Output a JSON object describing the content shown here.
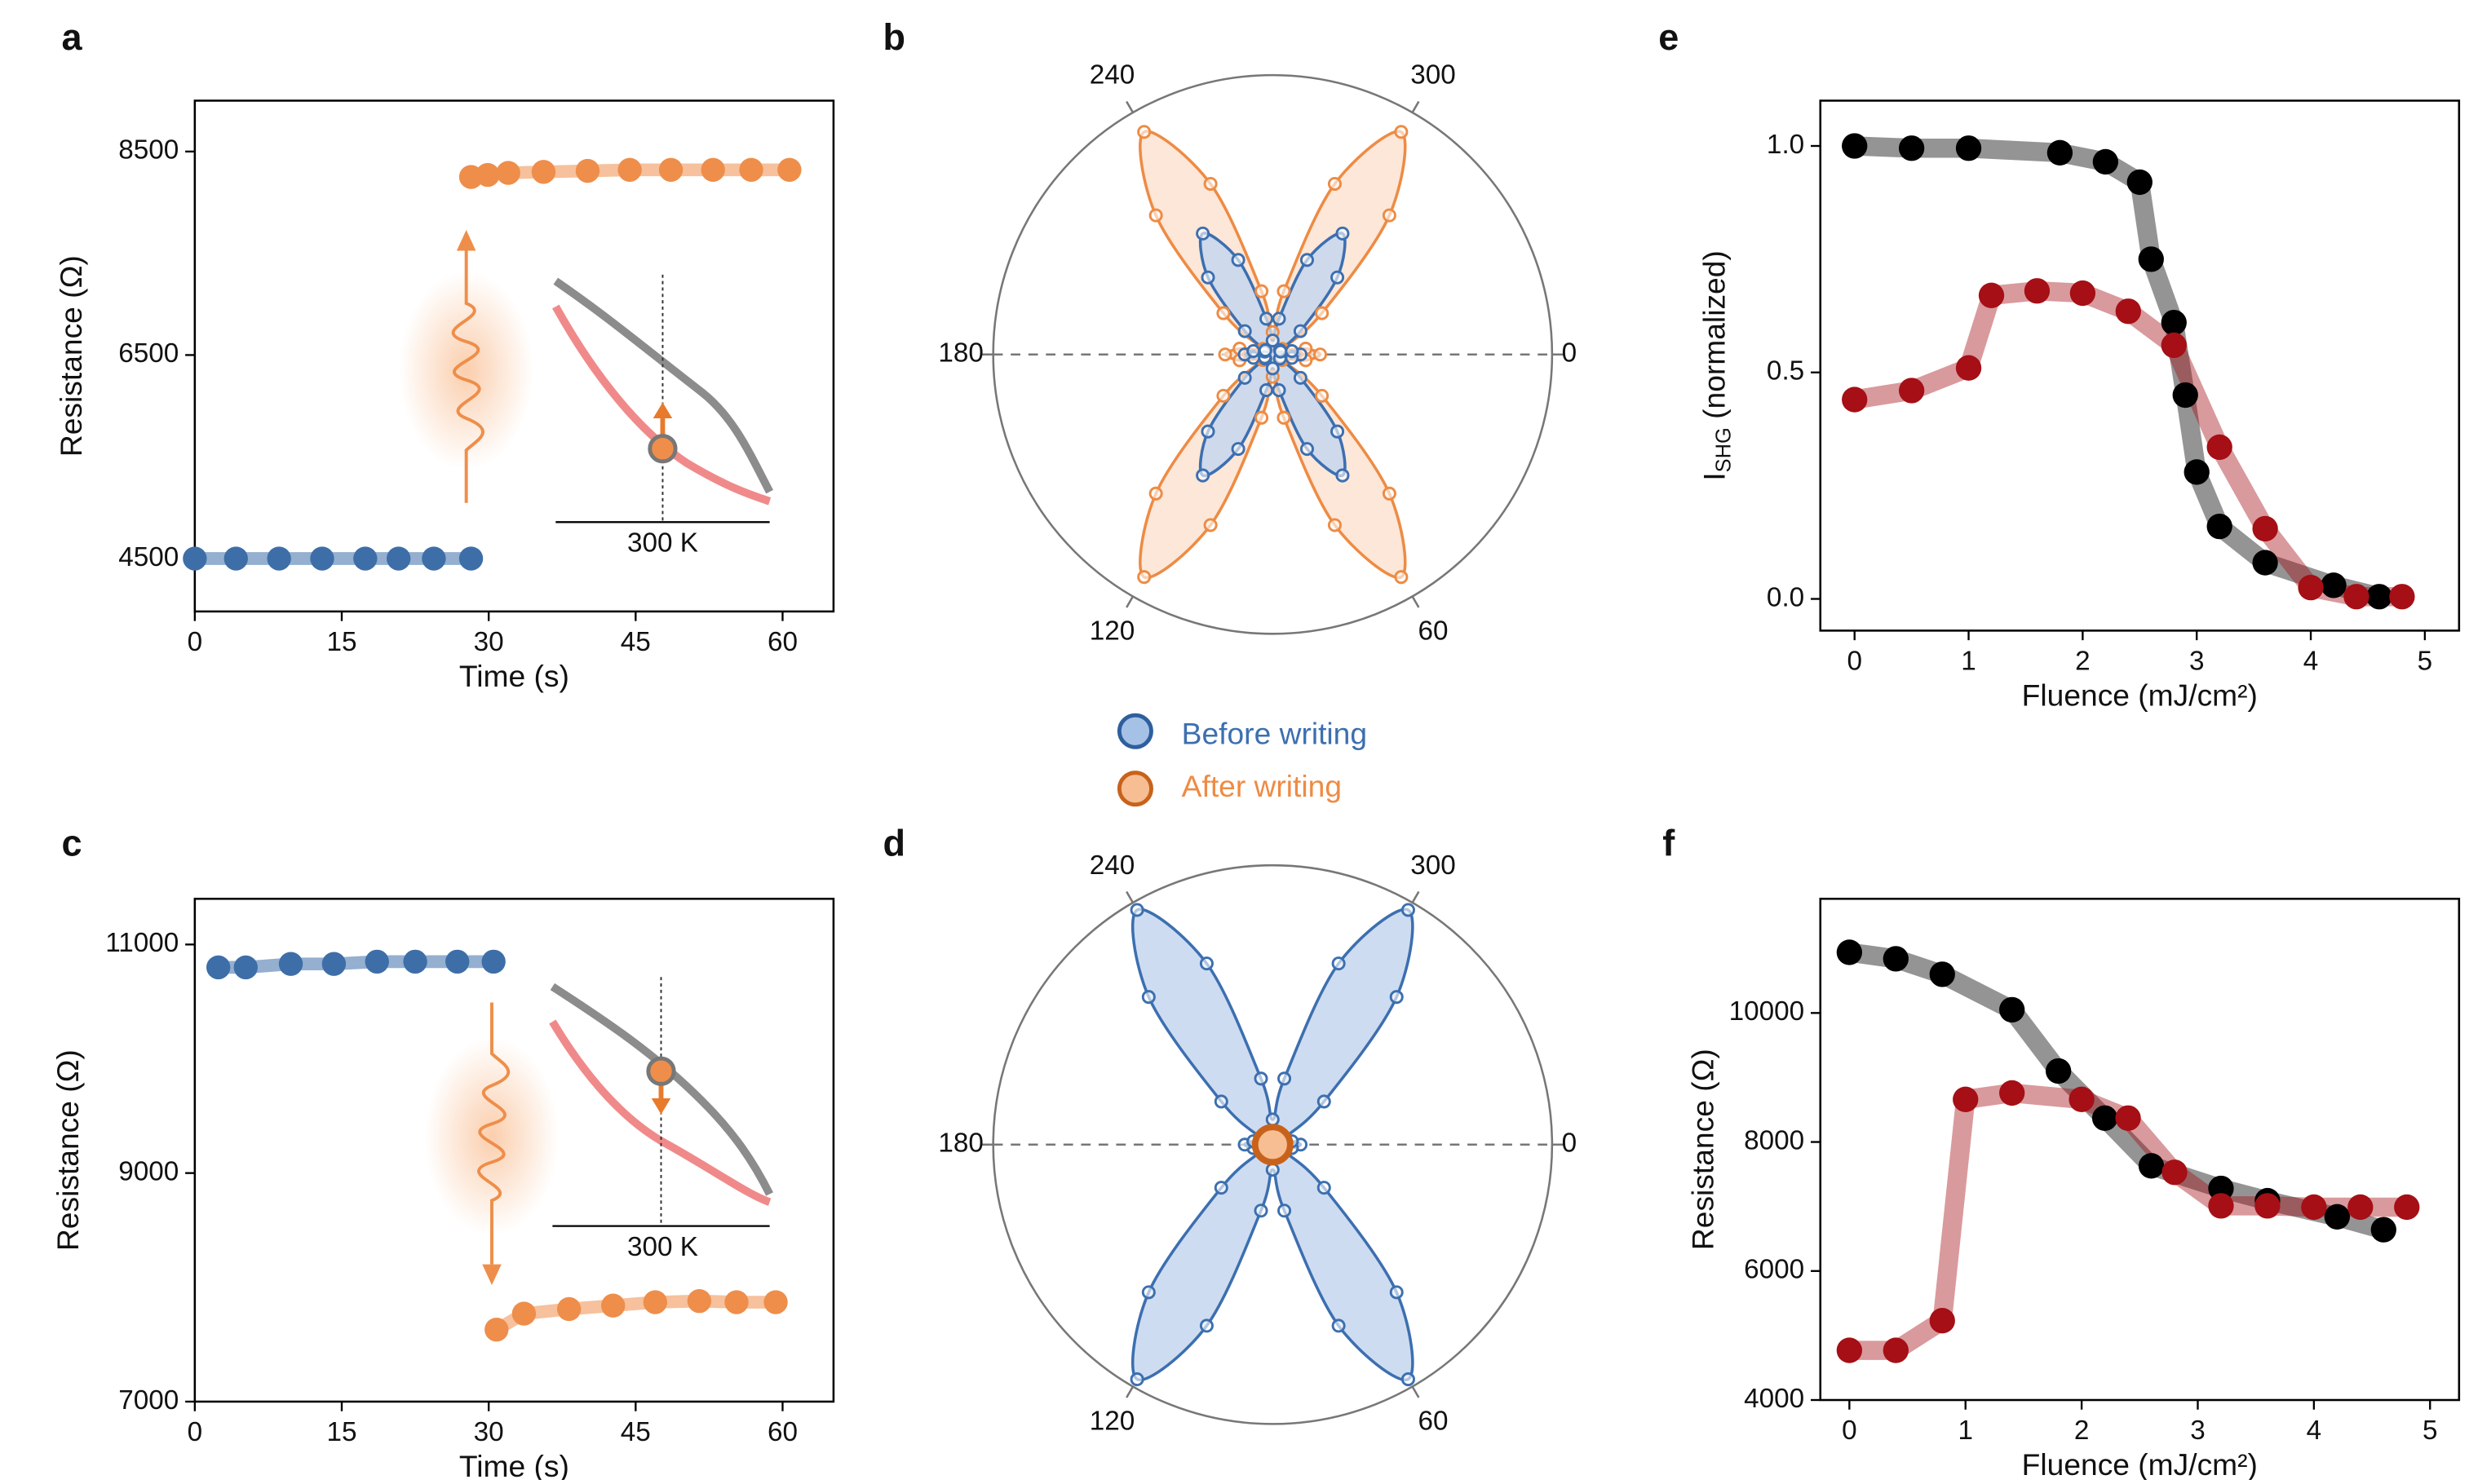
{
  "chart_data": [
    {
      "panel": "a",
      "type": "line",
      "xlabel": "Time (s)",
      "ylabel": "Resistance (Ω)",
      "xlim": [
        0,
        65.2
      ],
      "ylim": [
        3980,
        9000
      ],
      "xticks": [
        0,
        15,
        30,
        45,
        60
      ],
      "yticks": [
        4500,
        6500,
        8500
      ],
      "inset_label": "300 K",
      "series": [
        {
          "color": "#3d6ea8",
          "x": [
            0,
            4.2,
            8.6,
            13,
            17.4,
            20.8,
            24.4,
            28.2
          ],
          "values": [
            4500,
            4500,
            4500,
            4500,
            4500,
            4500,
            4500,
            4500
          ]
        },
        {
          "color": "#ee8e4a",
          "x": [
            28.2,
            29.9,
            32,
            35.6,
            40.1,
            44.4,
            48.6,
            52.9,
            56.8,
            60.7
          ],
          "values": [
            8250,
            8270,
            8290,
            8300,
            8310,
            8320,
            8320,
            8320,
            8320,
            8320
          ]
        }
      ]
    },
    {
      "panel": "b",
      "type": "polar",
      "rlim": [
        0,
        1
      ],
      "thetaticks": [
        0,
        60,
        120,
        180,
        240,
        300
      ],
      "series": [
        {
          "name": "Before writing",
          "color": "#3c6fb0",
          "fill": "#c5d6ee",
          "theta": [
            0,
            10,
            20,
            30,
            40,
            50,
            60,
            70,
            80,
            90,
            100,
            110,
            120,
            130,
            140,
            150,
            160,
            170,
            180,
            190,
            200,
            210,
            220,
            230,
            240,
            250,
            260,
            270,
            280,
            290,
            300,
            310,
            320,
            330,
            340,
            350
          ],
          "values": [
            0.1,
            0.07,
            0.03,
            0.03,
            0.13,
            0.36,
            0.5,
            0.36,
            0.13,
            0.05,
            0.13,
            0.36,
            0.5,
            0.36,
            0.13,
            0.03,
            0.03,
            0.07,
            0.1,
            0.07,
            0.03,
            0.03,
            0.13,
            0.36,
            0.5,
            0.36,
            0.13,
            0.05,
            0.13,
            0.36,
            0.5,
            0.36,
            0.13,
            0.03,
            0.03,
            0.07
          ]
        },
        {
          "name": "After writing",
          "color": "#ee8b43",
          "fill": "#fbe3d2",
          "theta": [
            0,
            10,
            20,
            30,
            40,
            50,
            60,
            70,
            80,
            90,
            100,
            110,
            120,
            130,
            140,
            150,
            160,
            170,
            180,
            190,
            200,
            210,
            220,
            230,
            240,
            250,
            260,
            270,
            280,
            290,
            300,
            310,
            320,
            330,
            340,
            350
          ],
          "values": [
            0.17,
            0.12,
            0.04,
            0.04,
            0.23,
            0.65,
            0.92,
            0.65,
            0.23,
            0.08,
            0.23,
            0.65,
            0.92,
            0.65,
            0.23,
            0.04,
            0.04,
            0.12,
            0.17,
            0.12,
            0.04,
            0.04,
            0.23,
            0.65,
            0.92,
            0.65,
            0.23,
            0.08,
            0.23,
            0.65,
            0.92,
            0.65,
            0.23,
            0.04,
            0.04,
            0.12
          ]
        }
      ]
    },
    {
      "panel": "c",
      "type": "line",
      "xlabel": "Time (s)",
      "ylabel": "Resistance (Ω)",
      "xlim": [
        0,
        65.2
      ],
      "ylim": [
        7000,
        11400
      ],
      "xticks": [
        0,
        15,
        30,
        45,
        60
      ],
      "yticks": [
        7000,
        9000,
        11000
      ],
      "inset_label": "300 K",
      "series": [
        {
          "color": "#3d6ea8",
          "x": [
            2.4,
            5.2,
            9.8,
            14.2,
            18.6,
            22.5,
            26.8,
            30.5
          ],
          "values": [
            10800,
            10800,
            10830,
            10830,
            10850,
            10850,
            10850,
            10850
          ]
        },
        {
          "color": "#ee8e4a",
          "x": [
            30.8,
            33.6,
            38.2,
            42.7,
            47,
            51.5,
            55.3,
            59.3
          ],
          "values": [
            7630,
            7770,
            7810,
            7840,
            7870,
            7880,
            7870,
            7870
          ]
        }
      ]
    },
    {
      "panel": "d",
      "type": "polar",
      "rlim": [
        0,
        1
      ],
      "thetaticks": [
        0,
        60,
        120,
        180,
        240,
        300
      ],
      "series": [
        {
          "color": "#3c6fb0",
          "fill": "#c5d6ee",
          "theta": [
            0,
            10,
            20,
            30,
            40,
            50,
            60,
            70,
            80,
            90,
            100,
            110,
            120,
            130,
            140,
            150,
            160,
            170,
            180,
            190,
            200,
            210,
            220,
            230,
            240,
            250,
            260,
            270,
            280,
            290,
            300,
            310,
            320,
            330,
            340,
            350
          ],
          "values": [
            0.1,
            0.07,
            0.03,
            0.05,
            0.24,
            0.69,
            0.97,
            0.69,
            0.24,
            0.09,
            0.24,
            0.69,
            0.97,
            0.69,
            0.24,
            0.05,
            0.03,
            0.07,
            0.1,
            0.07,
            0.03,
            0.05,
            0.24,
            0.69,
            0.97,
            0.69,
            0.24,
            0.09,
            0.24,
            0.69,
            0.97,
            0.69,
            0.24,
            0.05,
            0.03,
            0.07
          ]
        },
        {
          "color": "#c8621b",
          "fill": "#f6be92",
          "theta": [
            0
          ],
          "values": [
            0
          ]
        }
      ]
    },
    {
      "panel": "e",
      "type": "line",
      "xlabel": "Fluence (mJ/cm²)",
      "ylabel": [
        "I",
        "SHG",
        " (normalized)"
      ],
      "xlim": [
        -0.3,
        5.3
      ],
      "ylim": [
        -0.07,
        1.1
      ],
      "xticks": [
        0,
        1,
        2,
        3,
        4,
        5
      ],
      "yticks": [
        {
          "value": 0,
          "label": "0.0"
        },
        {
          "value": 0.5,
          "label": "0.5"
        },
        {
          "value": 1,
          "label": "1.0"
        }
      ],
      "series": [
        {
          "color": "#000000",
          "x": [
            0,
            0.5,
            1,
            1.8,
            2.2,
            2.5,
            2.6,
            2.8,
            2.9,
            3.0,
            3.2,
            3.6,
            4.2,
            4.6
          ],
          "values": [
            1.0,
            0.995,
            0.995,
            0.985,
            0.965,
            0.92,
            0.75,
            0.61,
            0.45,
            0.28,
            0.16,
            0.08,
            0.03,
            0.005
          ]
        },
        {
          "color": "#a50f15",
          "x": [
            0,
            0.5,
            1,
            1.2,
            1.6,
            2.0,
            2.4,
            2.8,
            3.2,
            3.6,
            4.0,
            4.4,
            4.8
          ],
          "values": [
            0.44,
            0.46,
            0.51,
            0.67,
            0.68,
            0.675,
            0.635,
            0.56,
            0.335,
            0.155,
            0.025,
            0.005,
            0.005
          ]
        }
      ]
    },
    {
      "panel": "f",
      "type": "line",
      "xlabel": "Fluence (mJ/cm²)",
      "ylabel": "Resistance (Ω)",
      "xlim": [
        -0.25,
        5.25
      ],
      "ylim": [
        4000,
        11770
      ],
      "xticks": [
        0,
        1,
        2,
        3,
        4,
        5
      ],
      "yticks": [
        4000,
        6000,
        8000,
        10000
      ],
      "series": [
        {
          "color": "#000000",
          "x": [
            0,
            0.4,
            0.8,
            1.4,
            1.8,
            2.2,
            2.6,
            3.2,
            3.6,
            4.2,
            4.6
          ],
          "values": [
            10940,
            10840,
            10600,
            10050,
            9100,
            8370,
            7630,
            7280,
            7090,
            6840,
            6640
          ]
        },
        {
          "color": "#a50f15",
          "x": [
            0,
            0.4,
            0.8,
            1.0,
            1.4,
            2.0,
            2.4,
            2.8,
            3.2,
            3.6,
            4.0,
            4.4,
            4.8
          ],
          "values": [
            4770,
            4770,
            5230,
            8660,
            8760,
            8660,
            8370,
            7530,
            7010,
            7010,
            6990,
            6990,
            6990
          ]
        }
      ]
    }
  ]
}
